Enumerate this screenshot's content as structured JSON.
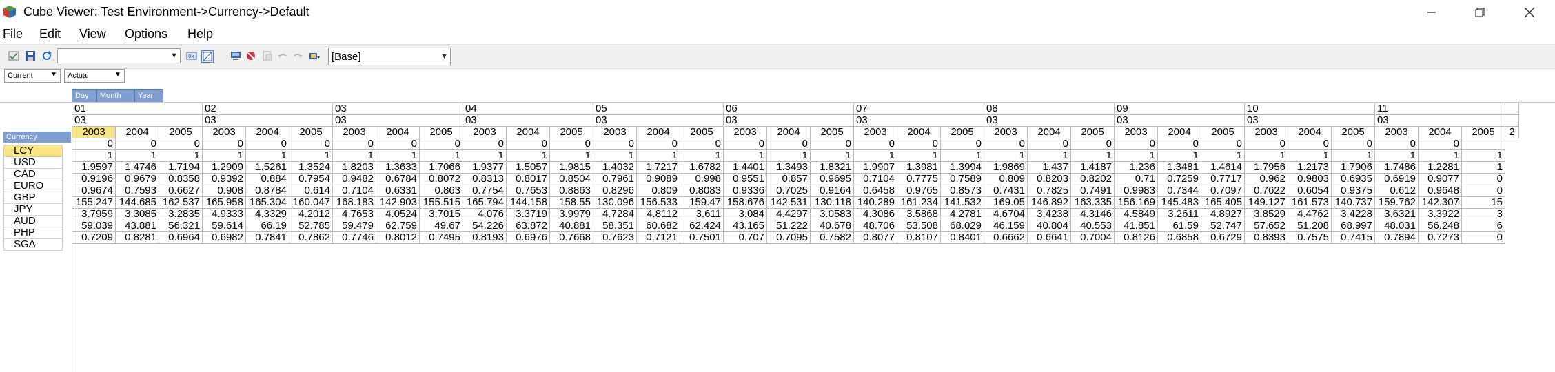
{
  "window": {
    "title": "Cube Viewer: Test Environment->Currency->Default",
    "controls": [
      "minimize",
      "restore",
      "close"
    ]
  },
  "menu": [
    {
      "label": "File",
      "mnemonic": "F",
      "rest": "ile"
    },
    {
      "label": "Edit",
      "mnemonic": "E",
      "rest": "dit"
    },
    {
      "label": "View",
      "mnemonic": "V",
      "rest": "iew"
    },
    {
      "label": "Options",
      "mnemonic": "O",
      "rest": "ptions"
    },
    {
      "label": "Help",
      "mnemonic": "H",
      "rest": "elp"
    }
  ],
  "toolbar": {
    "subset_value": "",
    "view_value": "[Base]",
    "icons": [
      "view-icon",
      "save-icon",
      "refresh-icon",
      "calc-icon",
      "zero-suppress-icon",
      "export-icon",
      "stop-icon",
      "spread-icon",
      "undo-icon",
      "redo-icon",
      "chart-icon"
    ]
  },
  "context": {
    "version": "Current",
    "scenario": "Actual"
  },
  "dimensions": {
    "column_chips": [
      "Day",
      "Month",
      "Year"
    ],
    "row_dim": "Currency"
  },
  "grid": {
    "days": [
      "01",
      "02",
      "03",
      "04",
      "05",
      "06",
      "07",
      "08",
      "09",
      "10",
      "11"
    ],
    "months": [
      "03",
      "03",
      "03",
      "03",
      "03",
      "03",
      "03",
      "03",
      "03",
      "03",
      "03"
    ],
    "years": [
      "2003",
      "2004",
      "2005"
    ],
    "partial_column_header": "2",
    "rows": [
      {
        "label": "LCY",
        "values": [
          "0",
          "0",
          "0",
          "0",
          "0",
          "0",
          "0",
          "0",
          "0",
          "0",
          "0",
          "0",
          "0",
          "0",
          "0",
          "0",
          "0",
          "0",
          "0",
          "0",
          "0",
          "0",
          "0",
          "0",
          "0",
          "0",
          "0",
          "0",
          "0",
          "0",
          "0",
          "0",
          ""
        ]
      },
      {
        "label": "USD",
        "values": [
          "1",
          "1",
          "1",
          "1",
          "1",
          "1",
          "1",
          "1",
          "1",
          "1",
          "1",
          "1",
          "1",
          "1",
          "1",
          "1",
          "1",
          "1",
          "1",
          "1",
          "1",
          "1",
          "1",
          "1",
          "1",
          "1",
          "1",
          "1",
          "1",
          "1",
          "1",
          "1",
          "1"
        ]
      },
      {
        "label": "CAD",
        "values": [
          "1.9597",
          "1.4746",
          "1.7194",
          "1.2909",
          "1.5261",
          "1.3524",
          "1.8203",
          "1.3633",
          "1.7066",
          "1.9377",
          "1.5057",
          "1.9815",
          "1.4032",
          "1.7217",
          "1.6782",
          "1.4401",
          "1.3493",
          "1.8321",
          "1.9907",
          "1.3981",
          "1.3994",
          "1.9869",
          "1.437",
          "1.4187",
          "1.236",
          "1.3481",
          "1.4614",
          "1.7956",
          "1.2173",
          "1.7906",
          "1.7486",
          "1.2281",
          "1"
        ]
      },
      {
        "label": "EURO",
        "values": [
          "0.9196",
          "0.9679",
          "0.8358",
          "0.9392",
          "0.884",
          "0.7954",
          "0.9482",
          "0.6784",
          "0.8072",
          "0.8313",
          "0.8017",
          "0.8504",
          "0.7961",
          "0.9089",
          "0.998",
          "0.9551",
          "0.857",
          "0.9695",
          "0.7104",
          "0.7775",
          "0.7589",
          "0.809",
          "0.8203",
          "0.8202",
          "0.71",
          "0.7259",
          "0.7717",
          "0.962",
          "0.9803",
          "0.6935",
          "0.6919",
          "0.9077",
          "0"
        ]
      },
      {
        "label": "GBP",
        "values": [
          "0.9674",
          "0.7593",
          "0.6627",
          "0.908",
          "0.8784",
          "0.614",
          "0.7104",
          "0.6331",
          "0.863",
          "0.7754",
          "0.7653",
          "0.8863",
          "0.8296",
          "0.809",
          "0.8083",
          "0.9336",
          "0.7025",
          "0.9164",
          "0.6458",
          "0.9765",
          "0.8573",
          "0.7431",
          "0.7825",
          "0.7491",
          "0.9983",
          "0.7344",
          "0.7097",
          "0.7622",
          "0.6054",
          "0.9375",
          "0.612",
          "0.9648",
          "0"
        ]
      },
      {
        "label": "JPY",
        "values": [
          "155.247",
          "144.685",
          "162.537",
          "165.958",
          "165.304",
          "160.047",
          "168.183",
          "142.903",
          "155.515",
          "165.794",
          "144.158",
          "158.55",
          "130.096",
          "156.533",
          "159.47",
          "158.676",
          "142.531",
          "130.118",
          "140.289",
          "161.234",
          "141.532",
          "169.05",
          "146.892",
          "163.335",
          "156.169",
          "145.483",
          "165.405",
          "149.127",
          "161.573",
          "140.737",
          "159.762",
          "142.307",
          "15"
        ]
      },
      {
        "label": "AUD",
        "values": [
          "3.7959",
          "3.3085",
          "3.2835",
          "4.9333",
          "4.3329",
          "4.2012",
          "4.7653",
          "4.0524",
          "3.7015",
          "4.076",
          "3.3719",
          "3.9979",
          "4.7284",
          "4.8112",
          "3.611",
          "3.084",
          "4.4297",
          "3.0583",
          "4.3086",
          "3.5868",
          "4.2781",
          "4.6704",
          "3.4238",
          "4.3146",
          "4.5849",
          "3.2611",
          "4.8927",
          "3.8529",
          "4.4762",
          "3.4228",
          "3.6321",
          "3.3922",
          "3"
        ]
      },
      {
        "label": "PHP",
        "values": [
          "59.039",
          "43.881",
          "56.321",
          "59.614",
          "66.19",
          "52.785",
          "59.479",
          "62.759",
          "49.67",
          "54.226",
          "63.872",
          "40.881",
          "58.351",
          "60.682",
          "62.424",
          "43.165",
          "51.222",
          "40.678",
          "48.706",
          "53.508",
          "68.029",
          "46.159",
          "40.804",
          "40.553",
          "41.851",
          "61.59",
          "52.747",
          "57.652",
          "51.208",
          "68.997",
          "48.031",
          "56.248",
          "6"
        ]
      },
      {
        "label": "SGA",
        "values": [
          "0.7209",
          "0.8281",
          "0.6964",
          "0.6982",
          "0.7841",
          "0.7862",
          "0.7746",
          "0.8012",
          "0.7495",
          "0.8193",
          "0.6976",
          "0.7668",
          "0.7623",
          "0.7121",
          "0.7501",
          "0.707",
          "0.7095",
          "0.7582",
          "0.8077",
          "0.8107",
          "0.8401",
          "0.6662",
          "0.6641",
          "0.7004",
          "0.8126",
          "0.6858",
          "0.6729",
          "0.8393",
          "0.7575",
          "0.7415",
          "0.7894",
          "0.7273",
          "0"
        ]
      }
    ]
  }
}
